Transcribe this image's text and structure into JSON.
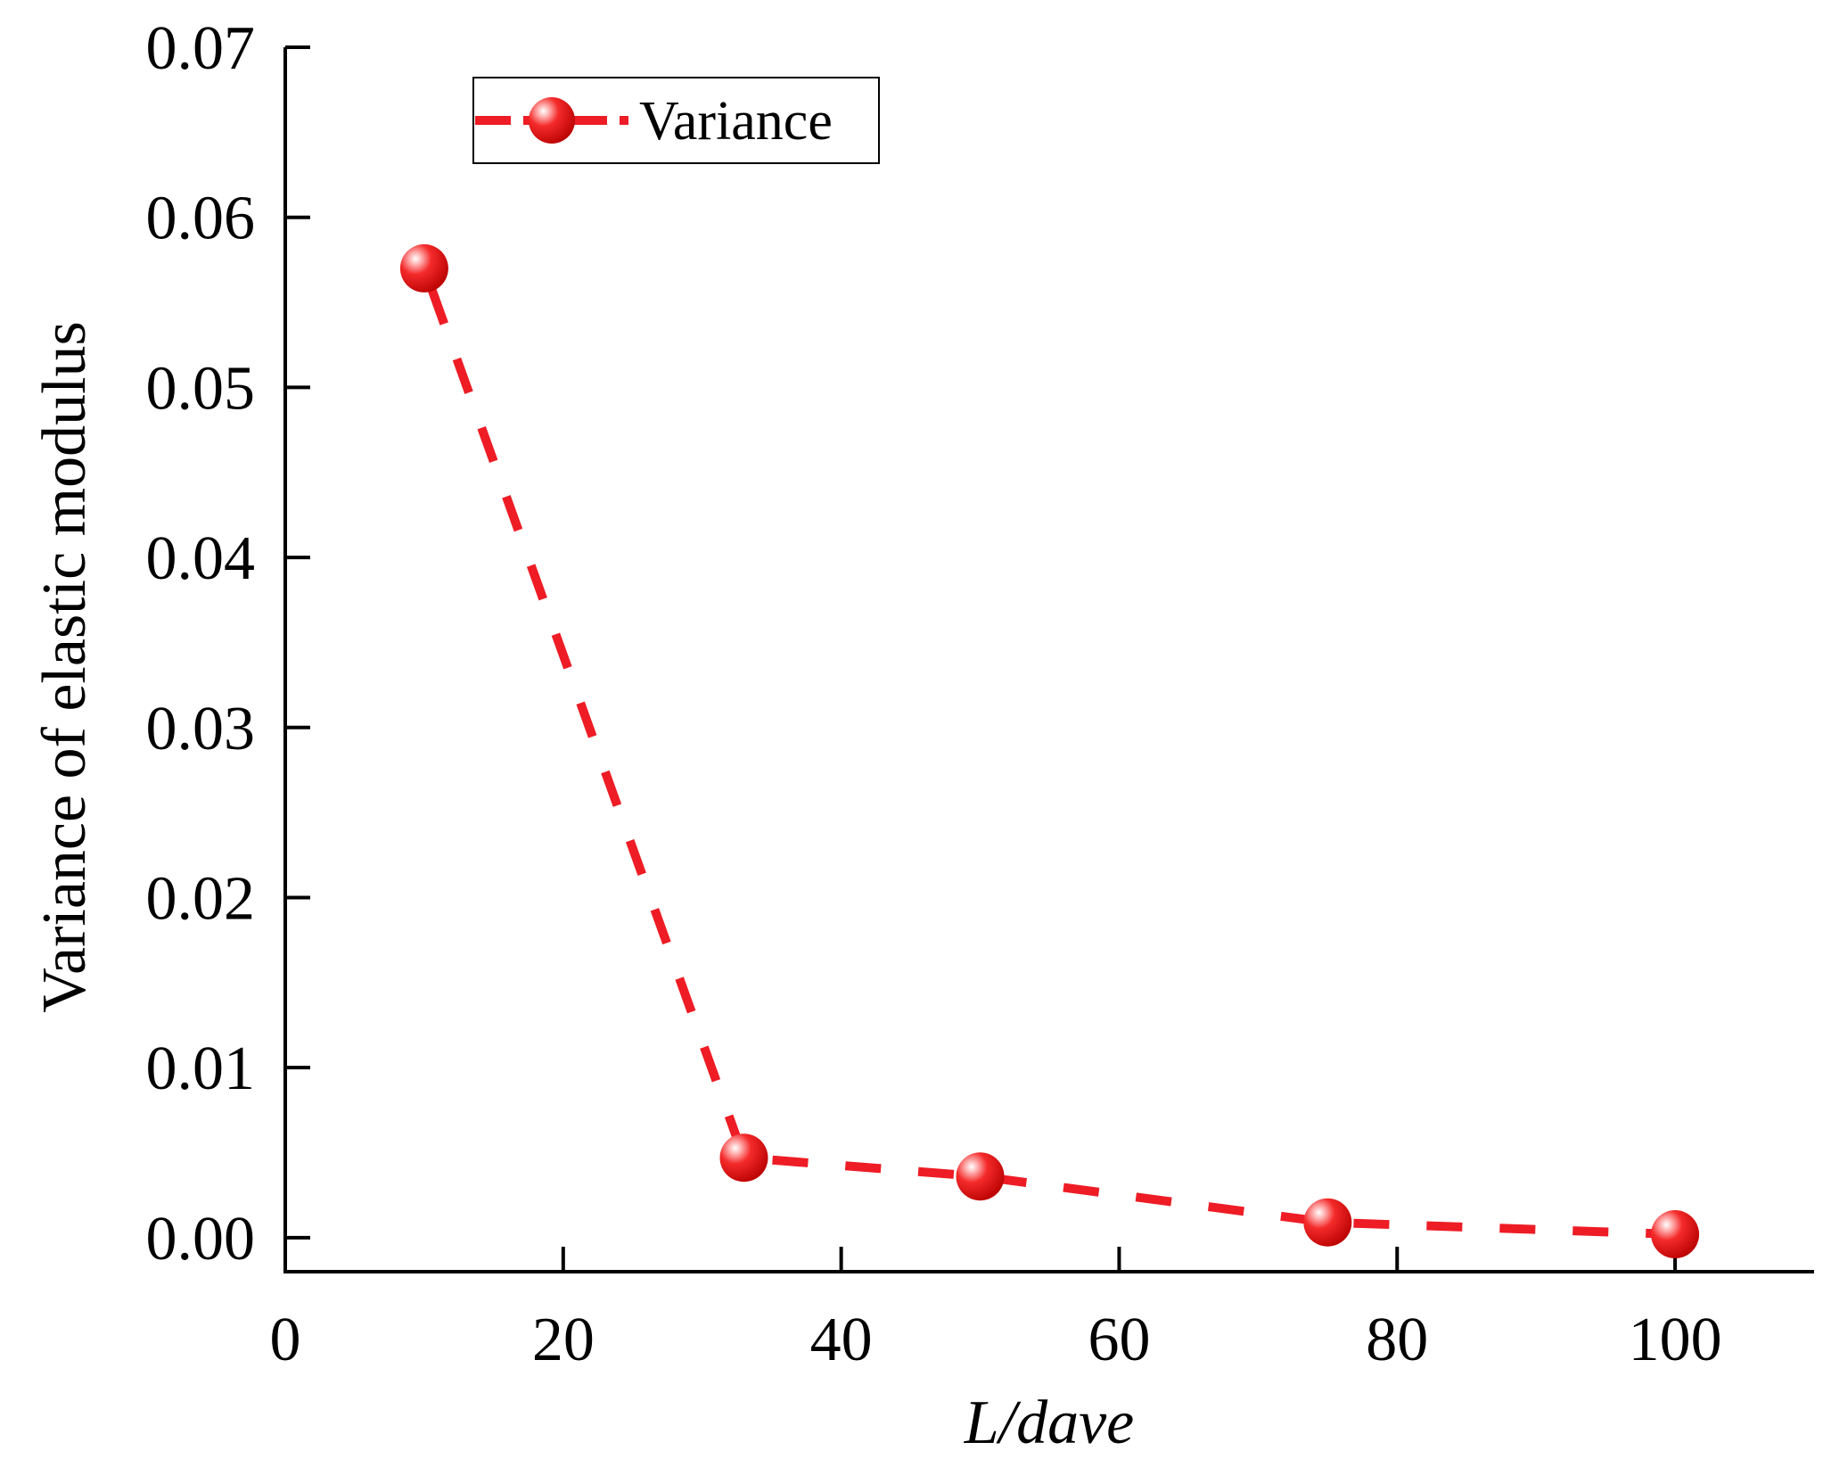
{
  "chart_data": {
    "type": "line",
    "title": "",
    "xlabel": "L/dave",
    "ylabel": "Variance of elastic modulus",
    "xlim": [
      0,
      110
    ],
    "ylim": [
      -0.002,
      0.07
    ],
    "x_ticks": [
      0,
      20,
      40,
      60,
      80,
      100
    ],
    "x_tick_labels": [
      "0",
      "20",
      "40",
      "60",
      "80",
      "100"
    ],
    "y_ticks": [
      0.0,
      0.01,
      0.02,
      0.03,
      0.04,
      0.05,
      0.06,
      0.07
    ],
    "y_tick_labels": [
      "0.00",
      "0.01",
      "0.02",
      "0.03",
      "0.04",
      "0.05",
      "0.06",
      "0.07"
    ],
    "grid": false,
    "legend_position": "top-left",
    "series": [
      {
        "name": "Variance",
        "color": "#ee1c25",
        "line_style": "dashed",
        "marker": "sphere",
        "x": [
          10,
          33,
          50,
          75,
          100
        ],
        "y": [
          0.057,
          0.0047,
          0.0036,
          0.0009,
          0.0002
        ]
      }
    ]
  }
}
